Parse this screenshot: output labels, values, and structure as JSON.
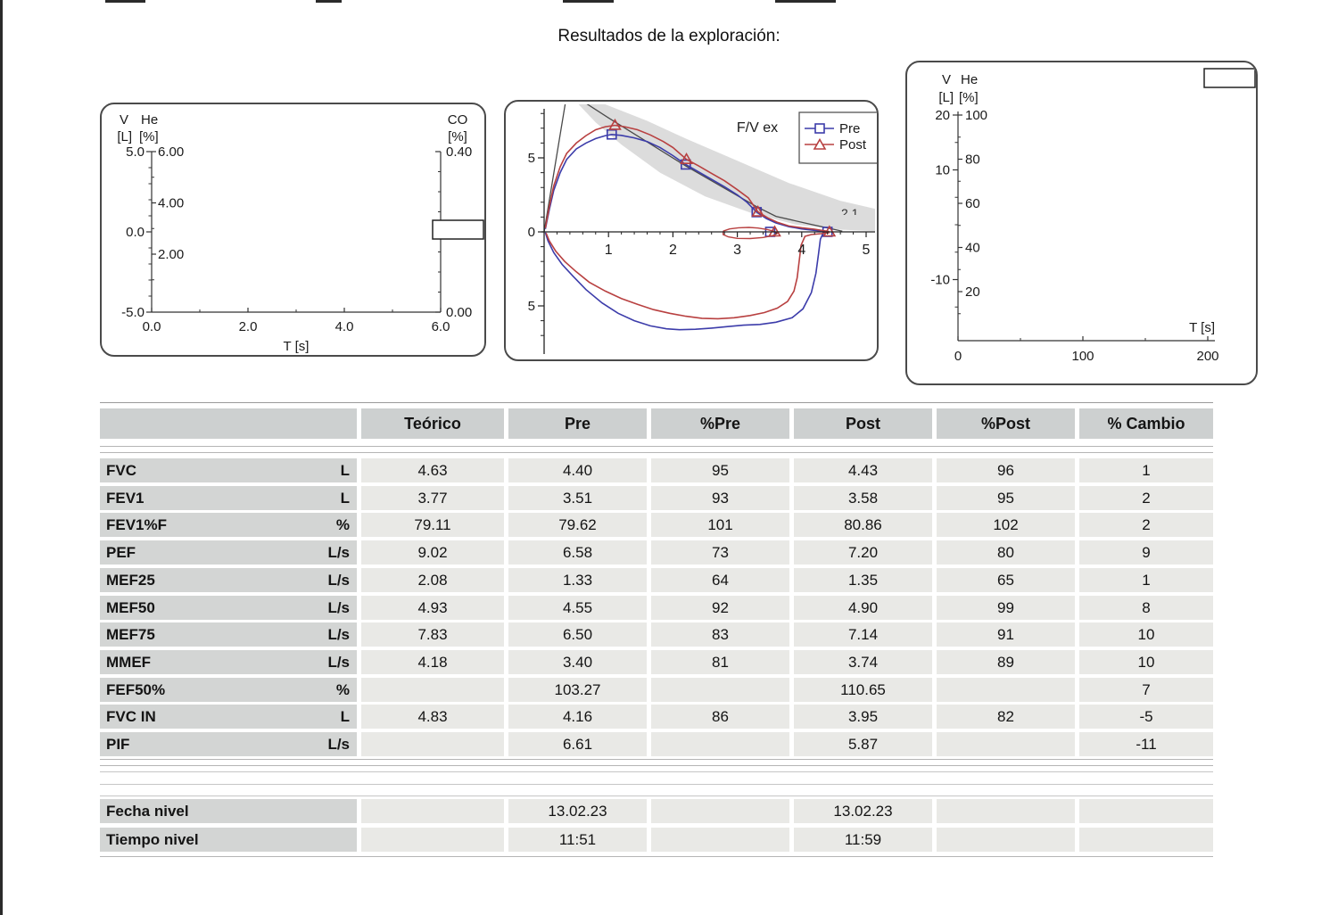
{
  "page": {
    "title": "Resultados de la exploración:"
  },
  "colors": {
    "pre": "#3c3caa",
    "post": "#b84040",
    "predicted": "#4a4a4a",
    "normal_band": "#dcdcdc",
    "axis": "#333333",
    "header_bg": "#cdd0d0",
    "label_bg": "#d3d5d4",
    "cell_bg": "#e9e9e6",
    "separator": "#b5b5b5"
  },
  "table": {
    "headers": [
      "Teórico",
      "Pre",
      "%Pre",
      "Post",
      "%Post",
      "% Cambio"
    ],
    "rows": [
      {
        "param": "FVC",
        "unit": "L",
        "values": [
          "4.63",
          "4.40",
          "95",
          "4.43",
          "96",
          "1"
        ]
      },
      {
        "param": "FEV1",
        "unit": "L",
        "values": [
          "3.77",
          "3.51",
          "93",
          "3.58",
          "95",
          "2"
        ]
      },
      {
        "param": "FEV1%F",
        "unit": "%",
        "values": [
          "79.11",
          "79.62",
          "101",
          "80.86",
          "102",
          "2"
        ]
      },
      {
        "param": "PEF",
        "unit": "L/s",
        "values": [
          "9.02",
          "6.58",
          "73",
          "7.20",
          "80",
          "9"
        ]
      },
      {
        "param": "MEF25",
        "unit": "L/s",
        "values": [
          "2.08",
          "1.33",
          "64",
          "1.35",
          "65",
          "1"
        ]
      },
      {
        "param": "MEF50",
        "unit": "L/s",
        "values": [
          "4.93",
          "4.55",
          "92",
          "4.90",
          "99",
          "8"
        ]
      },
      {
        "param": "MEF75",
        "unit": "L/s",
        "values": [
          "7.83",
          "6.50",
          "83",
          "7.14",
          "91",
          "10"
        ]
      },
      {
        "param": "MMEF",
        "unit": "L/s",
        "values": [
          "4.18",
          "3.40",
          "81",
          "3.74",
          "89",
          "10"
        ]
      },
      {
        "param": "FEF50%",
        "unit": "%",
        "values": [
          "",
          "103.27",
          "",
          "110.65",
          "",
          "7"
        ]
      },
      {
        "param": "FVC IN",
        "unit": "L",
        "values": [
          "4.83",
          "4.16",
          "86",
          "3.95",
          "82",
          "-5"
        ]
      },
      {
        "param": "PIF",
        "unit": "L/s",
        "values": [
          "",
          "6.61",
          "",
          "5.87",
          "",
          "-11"
        ]
      }
    ],
    "footer_rows": [
      {
        "param": "Fecha nivel",
        "unit": "",
        "values": [
          "",
          "13.02.23",
          "",
          "13.02.23",
          "",
          ""
        ]
      },
      {
        "param": "Tiempo nivel",
        "unit": "",
        "values": [
          "",
          "11:51",
          "",
          "11:59",
          "",
          ""
        ]
      }
    ]
  },
  "chart_data": [
    {
      "id": "volume-helium-co-vs-time",
      "type": "line",
      "title": "",
      "axes": {
        "left_volume": {
          "label": "V",
          "unit": "[L]",
          "ticks": [
            "5.0",
            "0.0",
            "-5.0"
          ],
          "range": [
            -5,
            5
          ]
        },
        "left_helium": {
          "label": "He",
          "unit": "[%]",
          "ticks": [
            "6.00",
            "4.00",
            "2.00"
          ],
          "range": [
            0,
            6
          ]
        },
        "right_co": {
          "label": "CO",
          "unit": "[%]",
          "ticks": [
            "0.40",
            "0.00"
          ],
          "range": [
            0,
            0.4
          ]
        },
        "x_time": {
          "label": "T  [s]",
          "ticks": [
            "0.0",
            "2.0",
            "4.0",
            "6.0"
          ],
          "range": [
            0,
            6
          ]
        }
      },
      "series": [],
      "empty_value_box": true
    },
    {
      "id": "flow-volume-loop",
      "type": "line",
      "title": "F/V ex",
      "x_ticks": [
        1,
        2,
        3,
        4,
        5
      ],
      "y_ticks": [
        5,
        0,
        -5
      ],
      "x_range": [
        0,
        5.2
      ],
      "y_range": [
        -8.4,
        8.4
      ],
      "annotation_partial": "2.1",
      "legend": {
        "position": "top-right",
        "entries": [
          {
            "label": "Pre",
            "marker": "square",
            "color": "#3c3caa"
          },
          {
            "label": "Post",
            "marker": "triangle",
            "color": "#b84040"
          }
        ]
      },
      "normal_band": [
        [
          0.34,
          9.8
        ],
        [
          0.9,
          8.7
        ],
        [
          1.6,
          7.5
        ],
        [
          2.2,
          6.3
        ],
        [
          3.0,
          4.8
        ],
        [
          3.8,
          3.3
        ],
        [
          4.6,
          2.1
        ],
        [
          5.35,
          1.35
        ],
        [
          5.35,
          0.02
        ],
        [
          4.6,
          0.15
        ],
        [
          3.9,
          0.5
        ],
        [
          3.2,
          1.3
        ],
        [
          2.5,
          2.4
        ],
        [
          1.8,
          4.0
        ],
        [
          1.2,
          5.9
        ],
        [
          0.8,
          7.4
        ],
        [
          0.45,
          9.0
        ],
        [
          0.34,
          9.8
        ]
      ],
      "predicted": [
        [
          0,
          0
        ],
        [
          0.36,
          9.5
        ],
        [
          1.0,
          7.7
        ],
        [
          2.2,
          4.45
        ],
        [
          3.3,
          1.7
        ],
        [
          3.6,
          1.05
        ],
        [
          4.1,
          0.55
        ],
        [
          4.63,
          0.05
        ]
      ],
      "series": [
        {
          "name": "Pre",
          "color": "#3c3caa",
          "marker": "square",
          "marker_points": [
            [
              1.05,
              6.58
            ],
            [
              2.2,
              4.55
            ],
            [
              3.3,
              1.33
            ],
            [
              3.51,
              0
            ],
            [
              4.4,
              0
            ]
          ],
          "expiratory": [
            [
              0.02,
              0.2
            ],
            [
              0.08,
              1.5
            ],
            [
              0.15,
              2.8
            ],
            [
              0.25,
              4.0
            ],
            [
              0.35,
              4.9
            ],
            [
              0.5,
              5.6
            ],
            [
              0.65,
              6.0
            ],
            [
              0.8,
              6.3
            ],
            [
              0.95,
              6.5
            ],
            [
              1.05,
              6.58
            ],
            [
              1.2,
              6.52
            ],
            [
              1.4,
              6.35
            ],
            [
              1.6,
              6.1
            ],
            [
              1.8,
              5.7
            ],
            [
              2.0,
              5.15
            ],
            [
              2.2,
              4.55
            ],
            [
              2.4,
              4.05
            ],
            [
              2.6,
              3.55
            ],
            [
              2.8,
              3.05
            ],
            [
              3.0,
              2.5
            ],
            [
              3.15,
              2.0
            ],
            [
              3.3,
              1.33
            ],
            [
              3.45,
              0.9
            ],
            [
              3.6,
              0.6
            ],
            [
              3.8,
              0.35
            ],
            [
              4.0,
              0.2
            ],
            [
              4.2,
              0.1
            ],
            [
              4.4,
              0.02
            ]
          ],
          "inspiratory": [
            [
              4.4,
              -0.02
            ],
            [
              4.33,
              -0.1
            ],
            [
              4.29,
              -0.5
            ],
            [
              4.26,
              -1.5
            ],
            [
              4.22,
              -2.8
            ],
            [
              4.15,
              -4.1
            ],
            [
              4.02,
              -5.2
            ],
            [
              3.85,
              -5.8
            ],
            [
              3.6,
              -6.1
            ],
            [
              3.35,
              -6.25
            ],
            [
              3.1,
              -6.3
            ],
            [
              2.85,
              -6.4
            ],
            [
              2.6,
              -6.5
            ],
            [
              2.35,
              -6.58
            ],
            [
              2.1,
              -6.61
            ],
            [
              1.9,
              -6.55
            ],
            [
              1.65,
              -6.35
            ],
            [
              1.4,
              -6.0
            ],
            [
              1.15,
              -5.5
            ],
            [
              0.9,
              -4.8
            ],
            [
              0.65,
              -3.9
            ],
            [
              0.45,
              -3.0
            ],
            [
              0.28,
              -2.2
            ],
            [
              0.15,
              -1.4
            ],
            [
              0.06,
              -0.6
            ],
            [
              0.02,
              -0.05
            ]
          ]
        },
        {
          "name": "Post",
          "color": "#b84040",
          "marker": "triangle",
          "marker_points": [
            [
              1.1,
              7.2
            ],
            [
              2.21,
              4.9
            ],
            [
              3.32,
              1.35
            ],
            [
              3.58,
              0
            ],
            [
              4.43,
              0
            ]
          ],
          "expiratory": [
            [
              0.02,
              0.25
            ],
            [
              0.08,
              1.7
            ],
            [
              0.15,
              3.1
            ],
            [
              0.25,
              4.4
            ],
            [
              0.35,
              5.3
            ],
            [
              0.5,
              6.0
            ],
            [
              0.65,
              6.5
            ],
            [
              0.8,
              6.9
            ],
            [
              0.95,
              7.1
            ],
            [
              1.1,
              7.2
            ],
            [
              1.25,
              7.1
            ],
            [
              1.45,
              6.9
            ],
            [
              1.65,
              6.55
            ],
            [
              1.85,
              6.1
            ],
            [
              2.0,
              5.7
            ],
            [
              2.21,
              4.9
            ],
            [
              2.4,
              4.45
            ],
            [
              2.6,
              3.95
            ],
            [
              2.8,
              3.45
            ],
            [
              3.0,
              2.85
            ],
            [
              3.17,
              2.3
            ],
            [
              3.32,
              1.35
            ],
            [
              3.47,
              0.95
            ],
            [
              3.62,
              0.65
            ],
            [
              3.8,
              0.4
            ],
            [
              4.0,
              0.28
            ],
            [
              4.2,
              0.18
            ],
            [
              4.43,
              0.02
            ]
          ],
          "inspiratory": [
            [
              4.43,
              -0.05
            ],
            [
              4.3,
              -0.12
            ],
            [
              4.15,
              -0.18
            ],
            [
              4.05,
              -0.3
            ],
            [
              3.99,
              -0.9
            ],
            [
              3.96,
              -2.0
            ],
            [
              3.93,
              -3.1
            ],
            [
              3.88,
              -4.0
            ],
            [
              3.78,
              -4.7
            ],
            [
              3.62,
              -5.15
            ],
            [
              3.42,
              -5.45
            ],
            [
              3.2,
              -5.65
            ],
            [
              2.95,
              -5.8
            ],
            [
              2.7,
              -5.87
            ],
            [
              2.45,
              -5.84
            ],
            [
              2.2,
              -5.7
            ],
            [
              1.95,
              -5.5
            ],
            [
              1.7,
              -5.25
            ],
            [
              1.45,
              -4.9
            ],
            [
              1.2,
              -4.5
            ],
            [
              0.95,
              -4.0
            ],
            [
              0.7,
              -3.4
            ],
            [
              0.5,
              -2.7
            ],
            [
              0.32,
              -2.0
            ],
            [
              0.18,
              -1.3
            ],
            [
              0.08,
              -0.6
            ],
            [
              0.03,
              -0.08
            ]
          ],
          "tidal_loop": [
            [
              2.78,
              0.05
            ],
            [
              2.88,
              0.2
            ],
            [
              3.02,
              0.28
            ],
            [
              3.18,
              0.3
            ],
            [
              3.32,
              0.26
            ],
            [
              3.46,
              0.16
            ],
            [
              3.57,
              0.04
            ],
            [
              3.62,
              -0.1
            ],
            [
              3.55,
              -0.25
            ],
            [
              3.4,
              -0.38
            ],
            [
              3.2,
              -0.45
            ],
            [
              3.0,
              -0.44
            ],
            [
              2.86,
              -0.34
            ],
            [
              2.78,
              -0.18
            ],
            [
              2.78,
              0.05
            ]
          ]
        }
      ]
    },
    {
      "id": "volume-helium-vs-time-long",
      "type": "line",
      "title": "",
      "axes": {
        "left_volume": {
          "label": "V",
          "unit": "[L]",
          "ticks": [
            "20",
            "10",
            "-10"
          ],
          "range": [
            -20,
            20
          ]
        },
        "left_helium": {
          "label": "He",
          "unit": "[%]",
          "ticks": [
            "100",
            "80",
            "60",
            "40",
            "20"
          ],
          "range": [
            0,
            100
          ]
        },
        "x_time": {
          "label": "T  [s]",
          "ticks": [
            "0",
            "100",
            "200"
          ],
          "range": [
            0,
            200
          ]
        }
      },
      "series": [],
      "empty_value_box": true
    }
  ]
}
